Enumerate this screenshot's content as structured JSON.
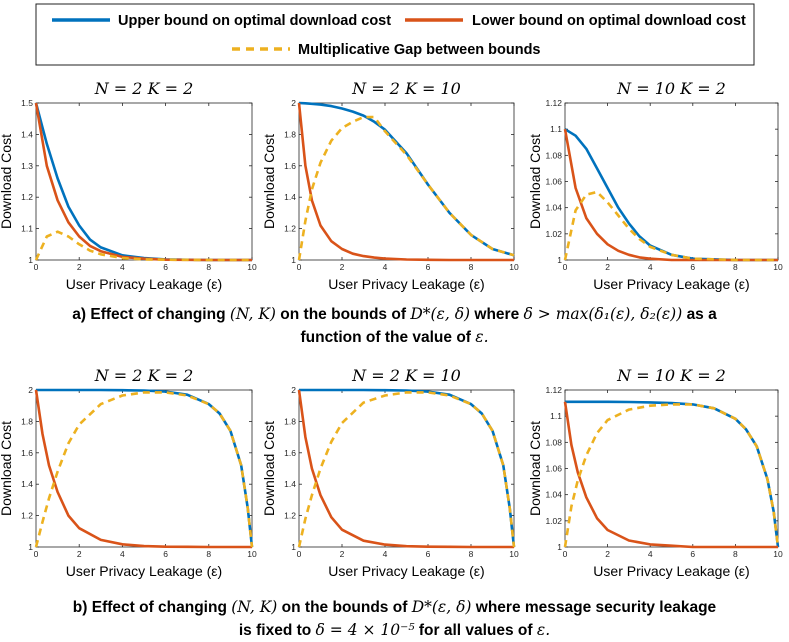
{
  "legend": {
    "upper": "Upper bound on optimal download cost",
    "lower": "Lower bound on optimal download cost",
    "gap": "Multiplicative Gap between bounds"
  },
  "colors": {
    "upper": "#0072BD",
    "lower": "#D95319",
    "gap": "#EDB120"
  },
  "captions": {
    "a": {
      "line1_p1": "a) Effect of changing",
      "line1_m1": "(N, K)",
      "line1_p2": "on the bounds of",
      "line1_m2": "D*(ε, δ)",
      "line1_p3": "where",
      "line1_m3": "δ > max(δ₁(ε), δ₂(ε))",
      "line1_p4": "as a",
      "line2_p1": "function of the value of",
      "line2_m1": "ε."
    },
    "b": {
      "line1_p1": "b) Effect of changing",
      "line1_m1": "(N, K)",
      "line1_p2": "on the bounds of",
      "line1_m2": "D*(ε, δ)",
      "line1_p3": "where message security leakage",
      "line2_p1": "is fixed to",
      "line2_m1": "δ = 4 × 10⁻⁵",
      "line2_p2": "for all values of",
      "line2_m2": "ε."
    }
  },
  "chart_data": [
    {
      "type": "line",
      "panel": "a1",
      "title": "N = 2    K = 2",
      "xlabel": "User Privacy Leakage (ε)",
      "ylabel": "Download Cost",
      "xlim": [
        0,
        10
      ],
      "ylim": [
        1,
        1.5
      ],
      "xticks": [
        0,
        2,
        4,
        6,
        8,
        10
      ],
      "xtick_labels": [
        "0",
        "2",
        "4",
        "6",
        "8",
        "10"
      ],
      "yticks": [
        1,
        1.1,
        1.2,
        1.3,
        1.4,
        1.5
      ],
      "ytick_labels": [
        "1",
        "1.1",
        "1.2",
        "1.3",
        "1.4",
        "1.5"
      ],
      "x": [
        0,
        0.5,
        1,
        1.5,
        2,
        2.5,
        3,
        4,
        5,
        6,
        8,
        10
      ],
      "series": [
        {
          "name": "Upper bound on optimal download cost",
          "key": "upper",
          "values": [
            1.5,
            1.37,
            1.26,
            1.17,
            1.11,
            1.065,
            1.04,
            1.015,
            1.006,
            1.002,
            1.0,
            1.0
          ]
        },
        {
          "name": "Lower bound on optimal download cost",
          "key": "lower",
          "values": [
            1.5,
            1.3,
            1.19,
            1.12,
            1.075,
            1.045,
            1.028,
            1.01,
            1.004,
            1.001,
            1.0,
            1.0
          ]
        },
        {
          "name": "Multiplicative Gap between bounds",
          "key": "gap",
          "values": [
            1.0,
            1.075,
            1.09,
            1.075,
            1.05,
            1.03,
            1.018,
            1.006,
            1.002,
            1.001,
            1.0,
            1.0
          ]
        }
      ]
    },
    {
      "type": "line",
      "panel": "a2",
      "title": "N = 2    K = 10",
      "xlabel": "User Privacy Leakage (ε)",
      "ylabel": "Download Cost",
      "xlim": [
        0,
        10
      ],
      "ylim": [
        1,
        2
      ],
      "xticks": [
        0,
        2,
        4,
        6,
        8,
        10
      ],
      "xtick_labels": [
        "0",
        "2",
        "4",
        "6",
        "8",
        "10"
      ],
      "yticks": [
        1,
        1.2,
        1.4,
        1.6,
        1.8,
        2
      ],
      "ytick_labels": [
        "1",
        "1.2",
        "1.4",
        "1.6",
        "1.8",
        "2"
      ],
      "x": [
        0,
        0.3,
        0.6,
        1,
        1.5,
        2,
        2.5,
        3,
        3.5,
        4,
        5,
        6,
        7,
        8,
        9,
        10
      ],
      "series": [
        {
          "name": "Upper bound on optimal download cost",
          "key": "upper",
          "values": [
            2.0,
            1.998,
            1.995,
            1.99,
            1.98,
            1.965,
            1.945,
            1.92,
            1.88,
            1.83,
            1.68,
            1.48,
            1.3,
            1.16,
            1.07,
            1.03
          ]
        },
        {
          "name": "Lower bound on optimal download cost",
          "key": "lower",
          "values": [
            2.0,
            1.6,
            1.38,
            1.22,
            1.12,
            1.07,
            1.04,
            1.025,
            1.015,
            1.009,
            1.003,
            1.001,
            1.0,
            1.0,
            1.0,
            1.0
          ]
        },
        {
          "name": "Multiplicative Gap between bounds",
          "key": "gap",
          "values": [
            1.0,
            1.25,
            1.45,
            1.62,
            1.76,
            1.84,
            1.88,
            1.91,
            1.91,
            1.82,
            1.67,
            1.48,
            1.3,
            1.16,
            1.07,
            1.03
          ]
        }
      ]
    },
    {
      "type": "line",
      "panel": "a3",
      "title": "N = 10    K = 2",
      "xlabel": "User Privacy Leakage (ε)",
      "ylabel": "Download Cost",
      "xlim": [
        0,
        10
      ],
      "ylim": [
        1,
        1.12
      ],
      "xticks": [
        0,
        2,
        4,
        6,
        8,
        10
      ],
      "xtick_labels": [
        "0",
        "2",
        "4",
        "6",
        "8",
        "10"
      ],
      "yticks": [
        1,
        1.02,
        1.04,
        1.06,
        1.08,
        1.1,
        1.12
      ],
      "ytick_labels": [
        "1",
        "1.02",
        "1.04",
        "1.06",
        "1.08",
        "1.1",
        "1.12"
      ],
      "x": [
        0,
        0.5,
        1,
        1.5,
        2,
        2.5,
        3,
        3.5,
        4,
        5,
        6,
        8,
        10
      ],
      "series": [
        {
          "name": "Upper bound on optimal download cost",
          "key": "upper",
          "values": [
            1.1,
            1.095,
            1.085,
            1.07,
            1.055,
            1.04,
            1.028,
            1.018,
            1.011,
            1.004,
            1.001,
            1.0,
            1.0
          ]
        },
        {
          "name": "Lower bound on optimal download cost",
          "key": "lower",
          "values": [
            1.1,
            1.055,
            1.032,
            1.02,
            1.012,
            1.007,
            1.004,
            1.002,
            1.001,
            1.0,
            1.0,
            1.0,
            1.0
          ]
        },
        {
          "name": "Multiplicative Gap between bounds",
          "key": "gap",
          "values": [
            1.0,
            1.038,
            1.05,
            1.052,
            1.044,
            1.034,
            1.024,
            1.016,
            1.01,
            1.004,
            1.001,
            1.0,
            1.0
          ]
        }
      ]
    },
    {
      "type": "line",
      "panel": "b1",
      "title": "N = 2    K = 2",
      "xlabel": "User Privacy Leakage (ε)",
      "ylabel": "Download Cost",
      "xlim": [
        0,
        10
      ],
      "ylim": [
        1,
        2
      ],
      "xticks": [
        0,
        2,
        4,
        6,
        8,
        10
      ],
      "xtick_labels": [
        "0",
        "2",
        "4",
        "6",
        "8",
        "10"
      ],
      "yticks": [
        1,
        1.2,
        1.4,
        1.6,
        1.8,
        2
      ],
      "ytick_labels": [
        "1",
        "1.2",
        "1.4",
        "1.6",
        "1.8",
        "2"
      ],
      "x": [
        0,
        0.3,
        0.6,
        1,
        1.5,
        2,
        3,
        4,
        5,
        6,
        7,
        8,
        8.5,
        9,
        9.5,
        9.8,
        10
      ],
      "series": [
        {
          "name": "Upper bound on optimal download cost",
          "key": "upper",
          "values": [
            2.0,
            2.0,
            2.0,
            2.0,
            2.0,
            2.0,
            2.0,
            1.999,
            1.997,
            1.99,
            1.97,
            1.91,
            1.85,
            1.74,
            1.52,
            1.25,
            1.0
          ]
        },
        {
          "name": "Lower bound on optimal download cost",
          "key": "lower",
          "values": [
            2.0,
            1.72,
            1.52,
            1.35,
            1.2,
            1.12,
            1.045,
            1.017,
            1.006,
            1.002,
            1.001,
            1.0,
            1.0,
            1.0,
            1.0,
            1.0,
            1.0
          ]
        },
        {
          "name": "Multiplicative Gap between bounds",
          "key": "gap",
          "values": [
            1.0,
            1.16,
            1.31,
            1.48,
            1.66,
            1.78,
            1.91,
            1.965,
            1.985,
            1.985,
            1.965,
            1.91,
            1.85,
            1.74,
            1.52,
            1.25,
            1.0
          ]
        }
      ]
    },
    {
      "type": "line",
      "panel": "b2",
      "title": "N = 2    K = 10",
      "xlabel": "User Privacy Leakage (ε)",
      "ylabel": "Download Cost",
      "xlim": [
        0,
        10
      ],
      "ylim": [
        1,
        2
      ],
      "xticks": [
        0,
        2,
        4,
        6,
        8,
        10
      ],
      "xtick_labels": [
        "0",
        "2",
        "4",
        "6",
        "8",
        "10"
      ],
      "yticks": [
        1,
        1.2,
        1.4,
        1.6,
        1.8,
        2
      ],
      "ytick_labels": [
        "1",
        "1.2",
        "1.4",
        "1.6",
        "1.8",
        "2"
      ],
      "x": [
        0,
        0.3,
        0.6,
        1,
        1.5,
        2,
        3,
        4,
        5,
        6,
        7,
        8,
        8.5,
        9,
        9.5,
        9.8,
        10
      ],
      "series": [
        {
          "name": "Upper bound on optimal download cost",
          "key": "upper",
          "values": [
            2.0,
            2.0,
            2.0,
            2.0,
            2.0,
            2.0,
            2.0,
            1.999,
            1.997,
            1.99,
            1.97,
            1.91,
            1.85,
            1.74,
            1.52,
            1.25,
            1.0
          ]
        },
        {
          "name": "Lower bound on optimal download cost",
          "key": "lower",
          "values": [
            2.0,
            1.7,
            1.5,
            1.33,
            1.19,
            1.11,
            1.04,
            1.015,
            1.005,
            1.002,
            1.001,
            1.0,
            1.0,
            1.0,
            1.0,
            1.0,
            1.0
          ]
        },
        {
          "name": "Multiplicative Gap between bounds",
          "key": "gap",
          "values": [
            1.0,
            1.18,
            1.33,
            1.5,
            1.67,
            1.79,
            1.92,
            1.965,
            1.985,
            1.985,
            1.965,
            1.91,
            1.85,
            1.74,
            1.52,
            1.25,
            1.0
          ]
        }
      ]
    },
    {
      "type": "line",
      "panel": "b3",
      "title": "N = 10    K = 2",
      "xlabel": "User Privacy Leakage (ε)",
      "ylabel": "Download Cost",
      "xlim": [
        0,
        10
      ],
      "ylim": [
        1,
        1.12
      ],
      "xticks": [
        0,
        2,
        4,
        6,
        8,
        10
      ],
      "xtick_labels": [
        "0",
        "2",
        "4",
        "6",
        "8",
        "10"
      ],
      "yticks": [
        1,
        1.02,
        1.04,
        1.06,
        1.08,
        1.1,
        1.12
      ],
      "ytick_labels": [
        "1",
        "1.02",
        "1.04",
        "1.06",
        "1.08",
        "1.1",
        "1.12"
      ],
      "x": [
        0,
        0.3,
        0.6,
        1,
        1.5,
        2,
        3,
        4,
        5,
        6,
        7,
        8,
        8.5,
        9,
        9.5,
        9.8,
        10
      ],
      "series": [
        {
          "name": "Upper bound on optimal download cost",
          "key": "upper",
          "values": [
            1.111,
            1.111,
            1.111,
            1.111,
            1.111,
            1.111,
            1.1108,
            1.1105,
            1.11,
            1.109,
            1.106,
            1.098,
            1.09,
            1.077,
            1.052,
            1.027,
            1.0
          ]
        },
        {
          "name": "Lower bound on optimal download cost",
          "key": "lower",
          "values": [
            1.111,
            1.078,
            1.057,
            1.038,
            1.022,
            1.013,
            1.005,
            1.002,
            1.001,
            1.0,
            1.0,
            1.0,
            1.0,
            1.0,
            1.0,
            1.0,
            1.0
          ]
        },
        {
          "name": "Multiplicative Gap between bounds",
          "key": "gap",
          "values": [
            1.0,
            1.031,
            1.051,
            1.07,
            1.087,
            1.097,
            1.105,
            1.108,
            1.109,
            1.109,
            1.106,
            1.098,
            1.09,
            1.077,
            1.052,
            1.027,
            1.0
          ]
        }
      ]
    }
  ]
}
